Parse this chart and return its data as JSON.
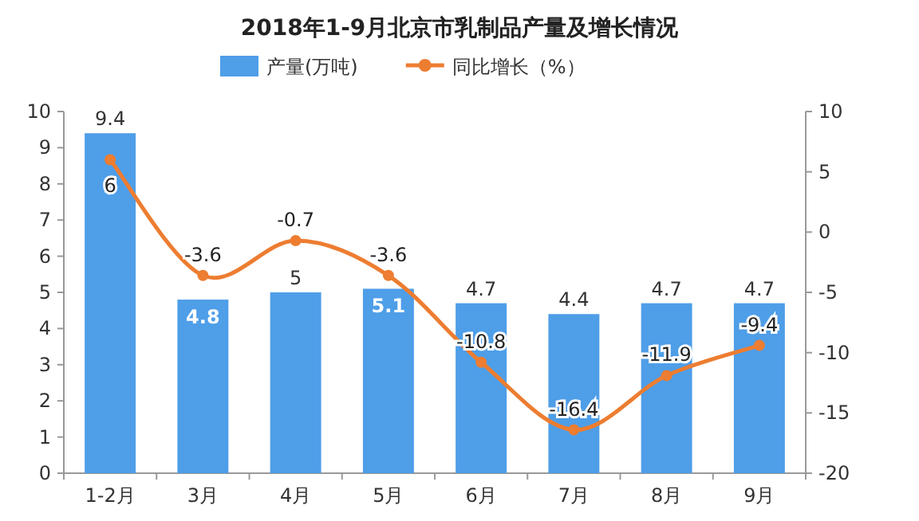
{
  "chart_data": {
    "type": "bar",
    "title": "2018年1-9月北京市乳制品产量及增长情况",
    "categories": [
      "1-2月",
      "3月",
      "4月",
      "5月",
      "6月",
      "7月",
      "8月",
      "9月"
    ],
    "series": [
      {
        "name": "产量(万吨)",
        "color": "#4e9ee8",
        "values": [
          9.4,
          4.8,
          5,
          5.1,
          4.7,
          4.4,
          4.7,
          4.7
        ]
      },
      {
        "name": "同比增长（%）",
        "type": "line",
        "axis": "y2",
        "color": "#ed7d31",
        "marker": "circle",
        "values": [
          6,
          -3.6,
          -0.7,
          -3.6,
          -10.8,
          -16.4,
          -11.9,
          -9.4
        ]
      }
    ],
    "ylim": [
      0,
      10
    ],
    "yticks": [
      0,
      1,
      2,
      3,
      4,
      5,
      6,
      7,
      8,
      9,
      10
    ],
    "y2lim": [
      -20,
      10
    ],
    "y2ticks": [
      -20,
      -15,
      -10,
      -5,
      0,
      5,
      10
    ],
    "data_labels": true,
    "legend": "top"
  }
}
